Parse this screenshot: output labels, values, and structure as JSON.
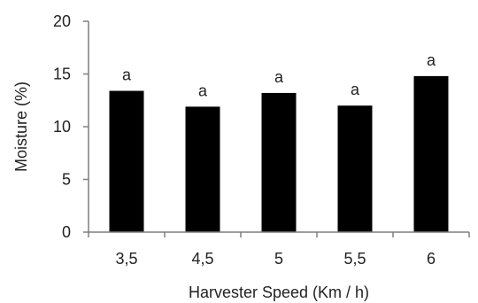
{
  "chart_data": {
    "type": "bar",
    "title": "",
    "xlabel": "Harvester Speed (Km / h)",
    "ylabel": "Moisture (%)",
    "categories": [
      "3,5",
      "4,5",
      "5",
      "5,5",
      "6"
    ],
    "values": [
      13.4,
      11.9,
      13.2,
      12.0,
      14.8
    ],
    "labels": [
      "a",
      "a",
      "a",
      "a",
      "a"
    ],
    "ylim": [
      0,
      20
    ],
    "yticks": [
      0,
      5,
      10,
      15,
      20
    ],
    "grid": false,
    "bar_color": "#000000",
    "axis_color": "#7f7f7f"
  }
}
